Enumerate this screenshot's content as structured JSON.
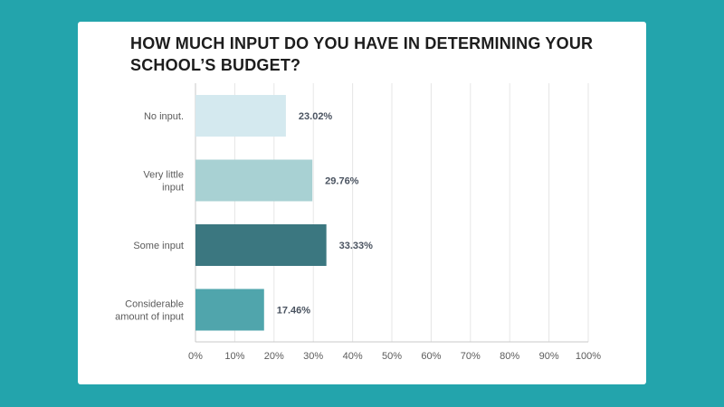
{
  "chart_data": {
    "type": "bar",
    "orientation": "horizontal",
    "title": "HOW MUCH INPUT DO YOU HAVE IN DETERMINING YOUR SCHOOL’S BUDGET?",
    "categories": [
      [
        "No input."
      ],
      [
        "Very little",
        "input"
      ],
      [
        "Some input"
      ],
      [
        "Considerable",
        "amount of input"
      ]
    ],
    "values": [
      23.02,
      29.76,
      33.33,
      17.46
    ],
    "value_labels": [
      "23.02%",
      "29.76%",
      "33.33%",
      "17.46%"
    ],
    "bar_colors": [
      "#d4e9ef",
      "#a8d1d3",
      "#3b7780",
      "#50a5ac"
    ],
    "xlim": [
      0,
      100
    ],
    "x_ticks": [
      0,
      10,
      20,
      30,
      40,
      50,
      60,
      70,
      80,
      90,
      100
    ],
    "x_tick_labels": [
      "0%",
      "10%",
      "20%",
      "30%",
      "40%",
      "50%",
      "60%",
      "70%",
      "80%",
      "90%",
      "100%"
    ],
    "grid": true,
    "legend": "none"
  },
  "colors": {
    "background": "#23a4ac",
    "card": "#ffffff",
    "gridline": "#e6e6e6",
    "axis": "#c9c9c9"
  }
}
